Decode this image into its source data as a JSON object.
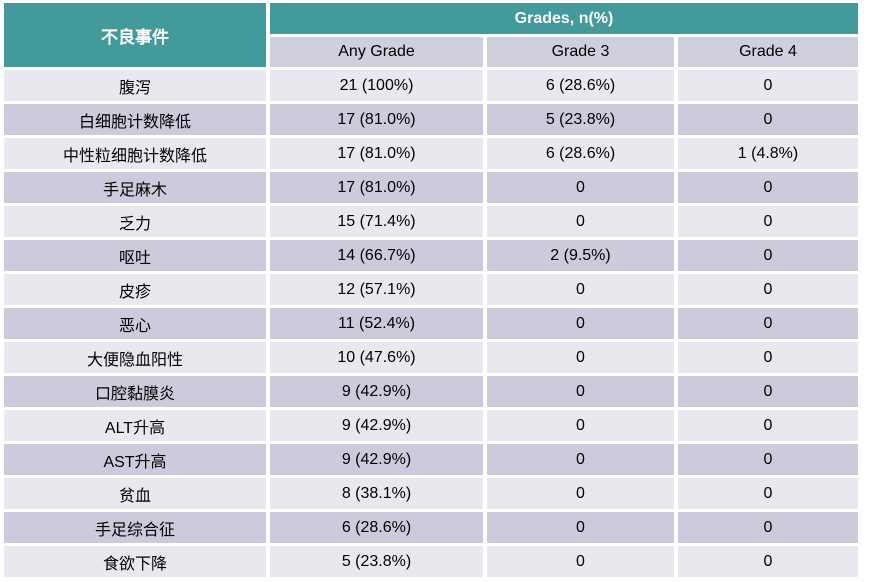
{
  "colors": {
    "header_teal": "#429a9b",
    "header_text": "#ffffff",
    "subheader_bg": "#d0cfde",
    "row_light": "#e9e8ee",
    "row_dark": "#cccbdb",
    "cell_text": "#000000",
    "page_background": "#ffffff"
  },
  "table": {
    "col1_header": "不良事件",
    "group_header": "Grades, n(%)",
    "subheaders": [
      "Any Grade",
      "Grade 3",
      "Grade 4"
    ],
    "rows": [
      {
        "event": "腹泻",
        "any_grade": "21 (100%)",
        "grade3": "6 (28.6%)",
        "grade4": "0"
      },
      {
        "event": "白细胞计数降低",
        "any_grade": "17 (81.0%)",
        "grade3": "5 (23.8%)",
        "grade4": "0"
      },
      {
        "event": "中性粒细胞计数降低",
        "any_grade": "17 (81.0%)",
        "grade3": "6 (28.6%)",
        "grade4": "1 (4.8%)"
      },
      {
        "event": "手足麻木",
        "any_grade": "17 (81.0%)",
        "grade3": "0",
        "grade4": "0"
      },
      {
        "event": "乏力",
        "any_grade": "15 (71.4%)",
        "grade3": "0",
        "grade4": "0"
      },
      {
        "event": "呕吐",
        "any_grade": "14 (66.7%)",
        "grade3": "2 (9.5%)",
        "grade4": "0"
      },
      {
        "event": "皮疹",
        "any_grade": "12 (57.1%)",
        "grade3": "0",
        "grade4": "0"
      },
      {
        "event": "恶心",
        "any_grade": "11 (52.4%)",
        "grade3": "0",
        "grade4": "0"
      },
      {
        "event": "大便隐血阳性",
        "any_grade": "10 (47.6%)",
        "grade3": "0",
        "grade4": "0"
      },
      {
        "event": "口腔黏膜炎",
        "any_grade": "9 (42.9%)",
        "grade3": "0",
        "grade4": "0"
      },
      {
        "event": "ALT升高",
        "any_grade": "9 (42.9%)",
        "grade3": "0",
        "grade4": "0"
      },
      {
        "event": "AST升高",
        "any_grade": "9 (42.9%)",
        "grade3": "0",
        "grade4": "0"
      },
      {
        "event": "贫血",
        "any_grade": "8 (38.1%)",
        "grade3": "0",
        "grade4": "0"
      },
      {
        "event": "手足综合征",
        "any_grade": "6 (28.6%)",
        "grade3": "0",
        "grade4": "0"
      },
      {
        "event": "食欲下降",
        "any_grade": "5 (23.8%)",
        "grade3": "0",
        "grade4": "0"
      }
    ]
  },
  "chart_data": {
    "type": "table",
    "title": "",
    "column_group": {
      "label": "Grades, n(%)",
      "spans": [
        "Any Grade",
        "Grade 3",
        "Grade 4"
      ]
    },
    "columns": [
      "不良事件",
      "Any Grade",
      "Grade 3",
      "Grade 4"
    ],
    "rows": [
      [
        "腹泻",
        "21 (100%)",
        "6 (28.6%)",
        "0"
      ],
      [
        "白细胞计数降低",
        "17 (81.0%)",
        "5 (23.8%)",
        "0"
      ],
      [
        "中性粒细胞计数降低",
        "17 (81.0%)",
        "6 (28.6%)",
        "1 (4.8%)"
      ],
      [
        "手足麻木",
        "17 (81.0%)",
        "0",
        "0"
      ],
      [
        "乏力",
        "15 (71.4%)",
        "0",
        "0"
      ],
      [
        "呕吐",
        "14 (66.7%)",
        "2 (9.5%)",
        "0"
      ],
      [
        "皮疹",
        "12 (57.1%)",
        "0",
        "0"
      ],
      [
        "恶心",
        "11 (52.4%)",
        "0",
        "0"
      ],
      [
        "大便隐血阳性",
        "10 (47.6%)",
        "0",
        "0"
      ],
      [
        "口腔黏膜炎",
        "9 (42.9%)",
        "0",
        "0"
      ],
      [
        "ALT升高",
        "9 (42.9%)",
        "0",
        "0"
      ],
      [
        "AST升高",
        "9 (42.9%)",
        "0",
        "0"
      ],
      [
        "贫血",
        "8 (38.1%)",
        "0",
        "0"
      ],
      [
        "手足综合征",
        "6 (28.6%)",
        "0",
        "0"
      ],
      [
        "食欲下降",
        "5 (23.8%)",
        "0",
        "0"
      ]
    ],
    "layout": {
      "header_style": "teal banner with white bold text",
      "body_style": "alternating light/dark lavender rows, centered text, white gridline gaps"
    }
  }
}
